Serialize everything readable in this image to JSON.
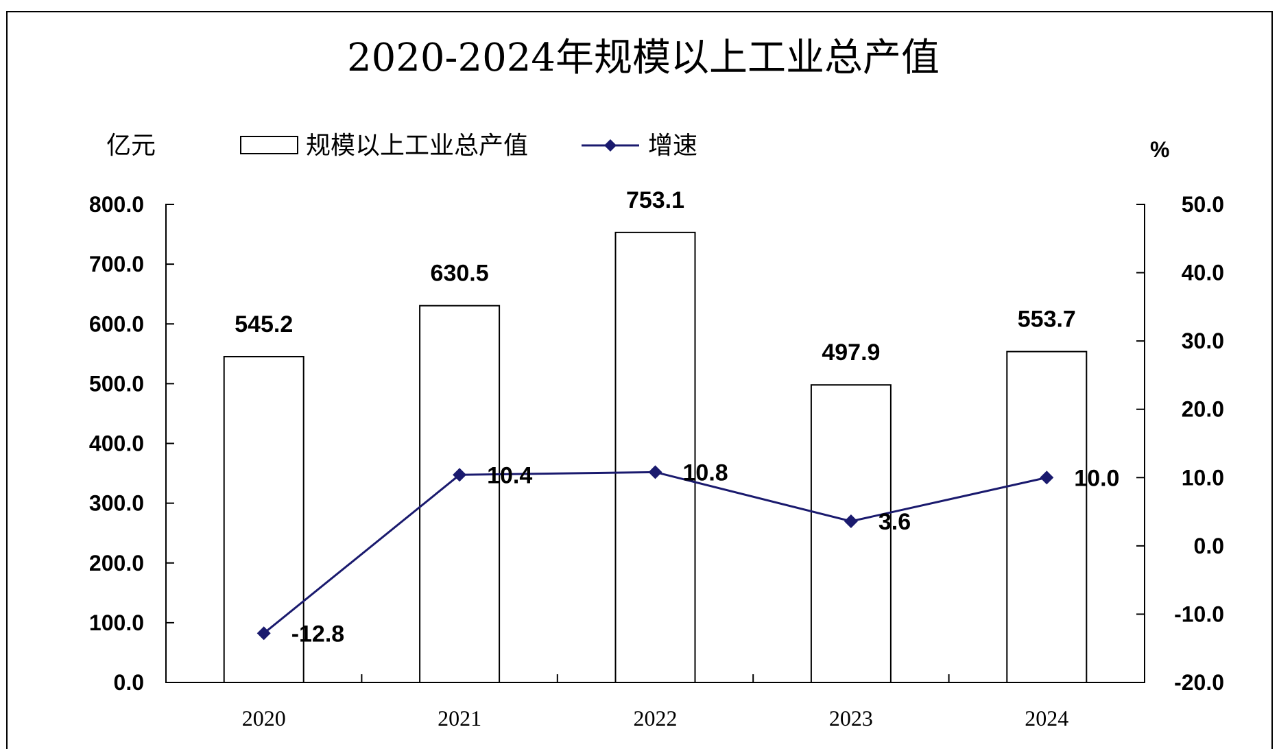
{
  "chart_data": {
    "type": "bar",
    "title": "2020-2024年规模以上工业总产值",
    "categories": [
      "2020",
      "2021",
      "2022",
      "2023",
      "2024"
    ],
    "y_left_label": "亿元",
    "y_right_label": "%",
    "y_left_range": [
      0,
      800
    ],
    "y_left_ticks": [
      "800.0",
      "700.0",
      "600.0",
      "500.0",
      "400.0",
      "300.0",
      "200.0",
      "100.0",
      "0.0"
    ],
    "y_right_range": [
      -20,
      50
    ],
    "y_right_ticks": [
      "50.0",
      "40.0",
      "30.0",
      "20.0",
      "10.0",
      "0.0",
      "-10.0",
      "-20.0"
    ],
    "legend_position": "top",
    "grid": false,
    "series": [
      {
        "name": "规模以上工业总产值",
        "type": "bar",
        "axis": "left",
        "values": [
          545.2,
          630.5,
          753.1,
          497.9,
          553.7
        ],
        "labels": [
          "545.2",
          "630.5",
          "753.1",
          "497.9",
          "553.7"
        ]
      },
      {
        "name": "增速",
        "type": "line",
        "axis": "right",
        "color": "#1a1a6e",
        "values": [
          -12.8,
          10.4,
          10.8,
          3.6,
          10.0
        ],
        "labels": [
          "-12.8",
          "10.4",
          "10.8",
          "3.6",
          "10.0"
        ]
      }
    ]
  }
}
